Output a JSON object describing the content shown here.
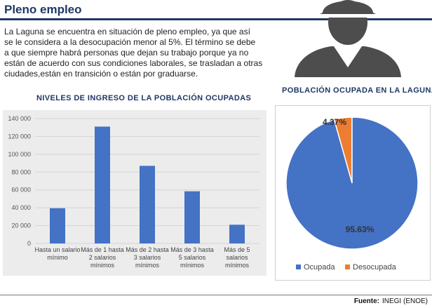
{
  "header": {
    "title": "Pleno empleo"
  },
  "intro": {
    "lines": [
      "La Laguna se encuentra en situación de pleno empleo, ya que así",
      "se le considera a la desocupación menor al 5%. El término se debe",
      "a que siempre habrá personas que dejan su trabajo porque ya no",
      "están de acuerdo con sus condiciones laborales, se trasladan a otras",
      "ciudades,están en transición o están por graduarse."
    ]
  },
  "colors": {
    "accent": "#1f3864",
    "bar": "#4472c4",
    "ocupada": "#4472c4",
    "desocupada": "#ed7d31",
    "icon": "#4d4d4d"
  },
  "icons": {
    "person": "worker-silhouette-icon"
  },
  "chart_data": [
    {
      "type": "bar",
      "title": "NIVELES DE INGRESO DE LA POBLACIÓN OCUPADAS",
      "categories": [
        [
          "Hasta un salario",
          "mínimo"
        ],
        [
          "Más de 1 hasta",
          "2 salarios",
          "mínimos"
        ],
        [
          "Más de 2 hasta",
          "3 salarios",
          "mínimos"
        ],
        [
          "Más de 3 hasta",
          "5 salarios",
          "mínimos"
        ],
        [
          "Más de 5",
          "salarios",
          "mínimos"
        ]
      ],
      "values": [
        39500,
        131000,
        87000,
        58500,
        21000
      ],
      "ylim": [
        0,
        140000
      ],
      "yticks": [
        "0",
        "20 000",
        "40 000",
        "60 000",
        "80 000",
        "100 000",
        "120 000",
        "140 000"
      ],
      "grid": true
    },
    {
      "type": "pie",
      "title": "POBLACIÓN OCUPADA EN LA LAGUNA",
      "slices": [
        {
          "name": "Ocupada",
          "value": 95.63,
          "label": "95.63%",
          "color": "#4472c4"
        },
        {
          "name": "Desocupada",
          "value": 4.37,
          "label": "4.37%",
          "color": "#ed7d31"
        }
      ],
      "legend": "bottom"
    }
  ],
  "footer": {
    "source_label": "Fuente:",
    "source_value": "INEGI (ENOE)"
  }
}
